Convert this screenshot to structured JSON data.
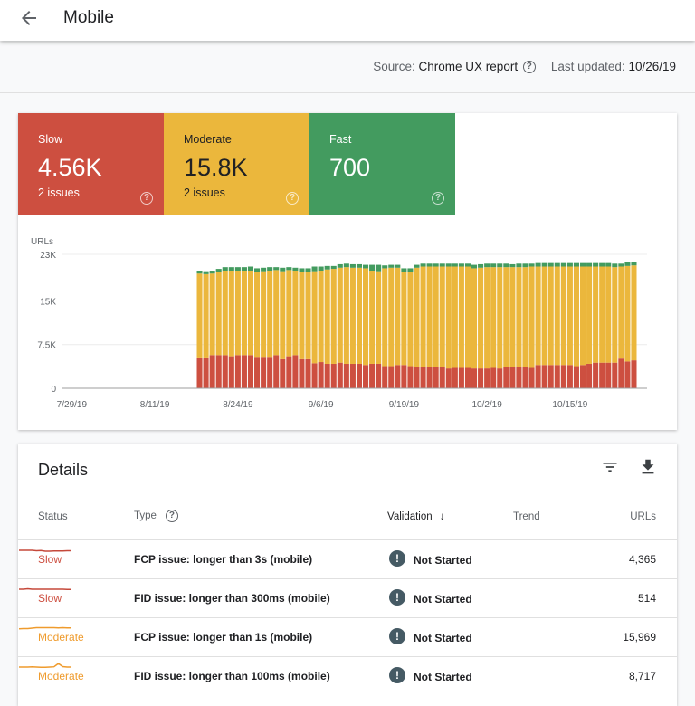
{
  "header": {
    "title": "Mobile",
    "back_icon": "arrow-left-icon"
  },
  "source": {
    "label": "Source:",
    "value": "Chrome UX report",
    "updated_label": "Last updated:",
    "updated_value": "10/26/19"
  },
  "summary": [
    {
      "label": "Slow",
      "value": "4.56K",
      "issues": "2 issues",
      "color": "#cd4f40"
    },
    {
      "label": "Moderate",
      "value": "15.8K",
      "issues": "2 issues",
      "color": "#ebb73c"
    },
    {
      "label": "Fast",
      "value": "700",
      "issues": "",
      "color": "#439b5f"
    }
  ],
  "chart_data": {
    "type": "bar",
    "stacked": true,
    "ylabel": "URLs",
    "ylim": [
      0,
      23000
    ],
    "yticks": [
      "0",
      "7.5K",
      "15K",
      "23K"
    ],
    "ytick_values": [
      0,
      7500,
      15000,
      23000
    ],
    "xticks": [
      "7/29/19",
      "8/11/19",
      "8/24/19",
      "9/6/19",
      "9/19/19",
      "10/2/19",
      "10/15/19"
    ],
    "x_start": "8/18/19",
    "x_end": "10/25/19",
    "grid": true,
    "series": [
      {
        "name": "Slow",
        "color": "#cd4f40",
        "values": [
          5.3,
          5.3,
          5.7,
          5.7,
          5.7,
          5.5,
          5.7,
          5.7,
          5.7,
          5.4,
          5.4,
          5.4,
          5.7,
          5.0,
          5.5,
          5.7,
          5.0,
          5.0,
          4.3,
          4.5,
          4.2,
          4.2,
          4.4,
          4.2,
          4.2,
          4.2,
          4.0,
          4.2,
          4.2,
          3.8,
          3.8,
          4.0,
          4.0,
          3.8,
          3.6,
          3.6,
          3.7,
          3.7,
          3.7,
          3.4,
          3.5,
          3.5,
          3.5,
          3.4,
          3.4,
          3.4,
          3.5,
          3.4,
          3.6,
          3.6,
          3.6,
          3.6,
          3.5,
          4.0,
          4.0,
          4.0,
          4.0,
          4.0,
          4.0,
          3.8,
          4.0,
          4.2,
          4.4,
          4.4,
          4.4,
          4.4,
          5.1,
          4.6,
          4.8
        ]
      },
      {
        "name": "Moderate",
        "color": "#ebb73c",
        "values": [
          14.4,
          14.3,
          14.0,
          14.3,
          14.5,
          14.7,
          14.5,
          14.5,
          14.5,
          14.6,
          14.7,
          14.8,
          14.6,
          15.1,
          14.8,
          14.5,
          15.0,
          15.0,
          15.8,
          15.7,
          16.2,
          16.3,
          16.3,
          16.6,
          16.5,
          16.5,
          16.6,
          16.0,
          15.9,
          16.8,
          16.9,
          16.7,
          16.0,
          16.2,
          17.1,
          17.3,
          17.2,
          17.2,
          17.2,
          17.5,
          17.4,
          17.4,
          17.4,
          17.2,
          17.3,
          17.4,
          17.3,
          17.4,
          17.2,
          17.2,
          17.2,
          17.2,
          17.4,
          16.9,
          16.9,
          16.9,
          16.9,
          16.9,
          16.9,
          17.1,
          16.9,
          16.7,
          16.5,
          16.5,
          16.5,
          16.4,
          15.8,
          16.4,
          16.3
        ]
      },
      {
        "name": "Fast",
        "color": "#439b5f",
        "values": [
          0.5,
          0.5,
          0.5,
          0.5,
          0.6,
          0.6,
          0.6,
          0.6,
          0.7,
          0.6,
          0.6,
          0.6,
          0.5,
          0.6,
          0.5,
          0.5,
          0.6,
          0.6,
          0.8,
          0.7,
          0.6,
          0.5,
          0.6,
          0.6,
          0.6,
          0.6,
          0.6,
          1.0,
          1.1,
          0.5,
          0.5,
          0.5,
          0.6,
          0.6,
          0.5,
          0.5,
          0.5,
          0.5,
          0.5,
          0.5,
          0.5,
          0.5,
          0.5,
          0.6,
          0.6,
          0.6,
          0.6,
          0.6,
          0.6,
          0.5,
          0.6,
          0.6,
          0.5,
          0.6,
          0.6,
          0.6,
          0.6,
          0.6,
          0.6,
          0.6,
          0.6,
          0.6,
          0.6,
          0.6,
          0.6,
          0.6,
          0.5,
          0.6,
          0.6
        ]
      }
    ]
  },
  "details": {
    "title": "Details",
    "filter_icon": "filter-icon",
    "download_icon": "download-icon",
    "columns": {
      "status": "Status",
      "type": "Type",
      "validation": "Validation",
      "trend": "Trend",
      "urls": "URLs"
    },
    "rows": [
      {
        "status": "Slow",
        "status_color": "#cd4f40",
        "type": "FCP issue: longer than 3s (mobile)",
        "validation": "Not Started",
        "urls": "4,365",
        "trend_color": "#c5483a",
        "trend": [
          5,
          5,
          5,
          5,
          4.8,
          4.9,
          4.6,
          4.6,
          4.7,
          4.7,
          4.7,
          4.8,
          4.8
        ]
      },
      {
        "status": "Slow",
        "status_color": "#cd4f40",
        "type": "FID issue: longer than 300ms (mobile)",
        "validation": "Not Started",
        "urls": "514",
        "trend_color": "#c5483a",
        "trend": [
          5,
          5,
          5.2,
          5,
          5,
          5,
          5,
          5,
          5,
          5,
          5,
          4.9,
          4.9
        ]
      },
      {
        "status": "Moderate",
        "status_color": "#ef9b2d",
        "type": "FCP issue: longer than 1s (mobile)",
        "validation": "Not Started",
        "urls": "15,969",
        "trend_color": "#ef9b2d",
        "trend": [
          4.7,
          4.8,
          4.8,
          5,
          5.2,
          5.2,
          5.2,
          5.2,
          5.2,
          5.1,
          5.2,
          5.1,
          5.1
        ]
      },
      {
        "status": "Moderate",
        "status_color": "#ef9b2d",
        "type": "FID issue: longer than 100ms (mobile)",
        "validation": "Not Started",
        "urls": "8,717",
        "trend_color": "#ef9b2d",
        "trend": [
          5,
          5,
          5,
          5.1,
          5,
          4.9,
          4.9,
          5,
          5.1,
          6.5,
          5.2,
          5,
          5
        ]
      }
    ]
  }
}
